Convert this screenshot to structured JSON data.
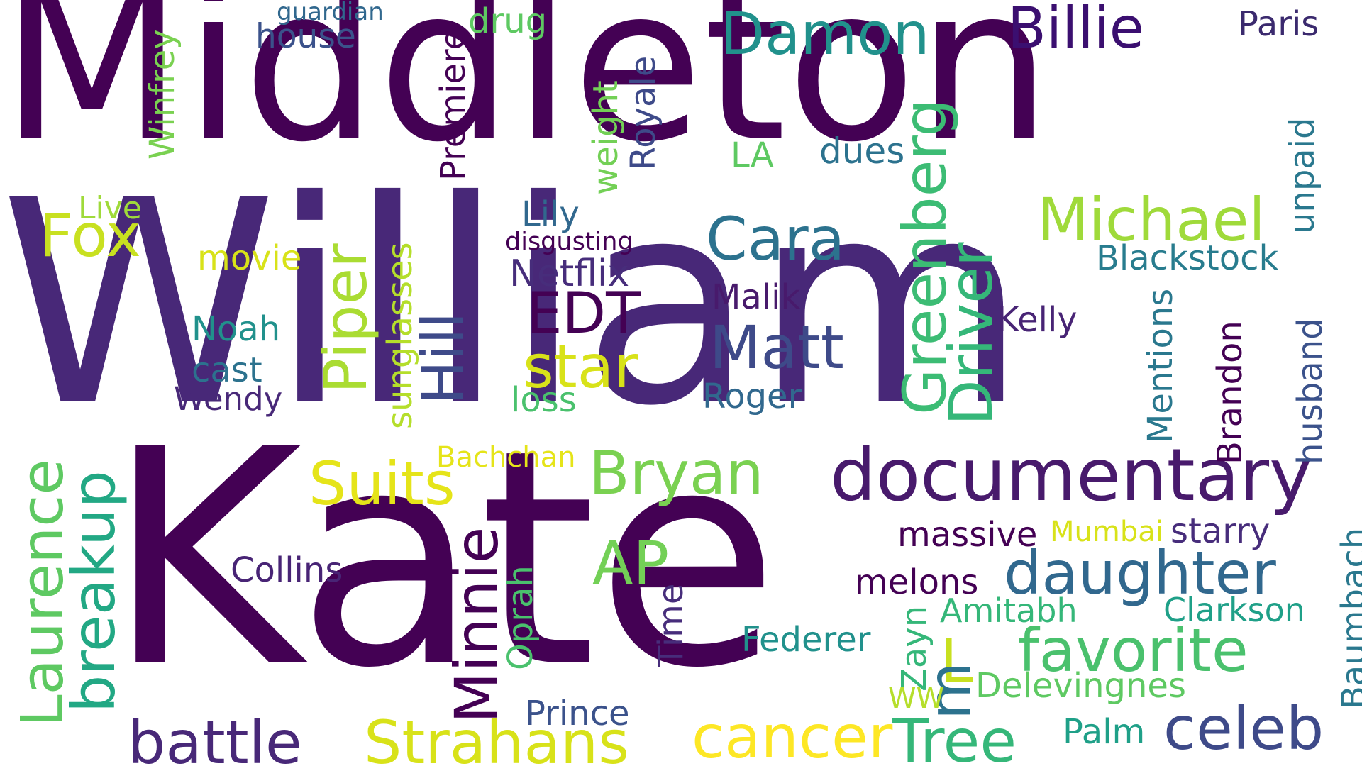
{
  "word_cloud": {
    "words": [
      {
        "id": "middleton",
        "text": "Middleton",
        "color": "#440154"
      },
      {
        "id": "william",
        "text": "William",
        "color": "#482878"
      },
      {
        "id": "kate",
        "text": "Kate",
        "color": "#440154"
      },
      {
        "id": "documentary",
        "text": "documentary",
        "color": "#481a6c"
      },
      {
        "id": "damon",
        "text": "Damon",
        "color": "#21918c"
      },
      {
        "id": "billie",
        "text": "Billie",
        "color": "#3b0f70"
      },
      {
        "id": "paris",
        "text": "Paris",
        "color": "#3b2a6e"
      },
      {
        "id": "guardian",
        "text": "guardian",
        "color": "#31688e"
      },
      {
        "id": "house",
        "text": "house",
        "color": "#3b528b"
      },
      {
        "id": "drug",
        "text": "drug",
        "color": "#5ec962"
      },
      {
        "id": "winfrey",
        "text": "Winfrey",
        "color": "#7ad151"
      },
      {
        "id": "premiere",
        "text": "Premiere",
        "color": "#440154"
      },
      {
        "id": "weight",
        "text": "weight",
        "color": "#73d056"
      },
      {
        "id": "royale",
        "text": "Royale",
        "color": "#3e4a89"
      },
      {
        "id": "la",
        "text": "LA",
        "color": "#5ec962"
      },
      {
        "id": "dues",
        "text": "dues",
        "color": "#2c728e"
      },
      {
        "id": "greenberg",
        "text": "Greenberg",
        "color": "#3cbc74"
      },
      {
        "id": "unpaid",
        "text": "unpaid",
        "color": "#2a788e"
      },
      {
        "id": "live",
        "text": "Live",
        "color": "#9fda3a"
      },
      {
        "id": "fox",
        "text": "Fox",
        "color": "#c8e020"
      },
      {
        "id": "movie",
        "text": "movie",
        "color": "#d8e219"
      },
      {
        "id": "lily",
        "text": "Lily",
        "color": "#31688e"
      },
      {
        "id": "disgusting",
        "text": "disgusting",
        "color": "#440154"
      },
      {
        "id": "cara",
        "text": "Cara",
        "color": "#2c728e"
      },
      {
        "id": "michael",
        "text": "Michael",
        "color": "#9fda3a"
      },
      {
        "id": "blackstock",
        "text": "Blackstock",
        "color": "#287c8e"
      },
      {
        "id": "netflix",
        "text": "Netflix",
        "color": "#472d7b"
      },
      {
        "id": "piper",
        "text": "Piper",
        "color": "#aadc32"
      },
      {
        "id": "sunglasses",
        "text": "sunglasses",
        "color": "#b5de2b"
      },
      {
        "id": "noah",
        "text": "Noah",
        "color": "#21918c"
      },
      {
        "id": "edt",
        "text": "EDT",
        "color": "#440154"
      },
      {
        "id": "hill",
        "text": "Hill",
        "color": "#3e4a89"
      },
      {
        "id": "malik",
        "text": "Malik",
        "color": "#481a6c"
      },
      {
        "id": "driver",
        "text": "Driver",
        "color": "#35b779"
      },
      {
        "id": "kelly",
        "text": "Kelly",
        "color": "#482475"
      },
      {
        "id": "mentions",
        "text": "Mentions",
        "color": "#2a788e"
      },
      {
        "id": "husband",
        "text": "husband",
        "color": "#3b528b"
      },
      {
        "id": "matt",
        "text": "Matt",
        "color": "#3e4a89"
      },
      {
        "id": "star",
        "text": "star",
        "color": "#d8e219"
      },
      {
        "id": "cast",
        "text": "cast",
        "color": "#2c728e"
      },
      {
        "id": "brandon",
        "text": "Brandon",
        "color": "#440154"
      },
      {
        "id": "wendy",
        "text": "Wendy",
        "color": "#482878"
      },
      {
        "id": "loss",
        "text": "loss",
        "color": "#4ac16d"
      },
      {
        "id": "roger",
        "text": "Roger",
        "color": "#31688e"
      },
      {
        "id": "bachchan",
        "text": "Bachchan",
        "color": "#e5e419"
      },
      {
        "id": "suits",
        "text": "Suits",
        "color": "#e5e419"
      },
      {
        "id": "bryan",
        "text": "Bryan",
        "color": "#7ad151"
      },
      {
        "id": "laurence",
        "text": "Laurence",
        "color": "#5ec962"
      },
      {
        "id": "breakup",
        "text": "breakup",
        "color": "#22a884"
      },
      {
        "id": "minnie",
        "text": "Minnie",
        "color": "#440154"
      },
      {
        "id": "collins",
        "text": "Collins",
        "color": "#482475"
      },
      {
        "id": "oprah",
        "text": "Oprah",
        "color": "#4ac16d"
      },
      {
        "id": "ap",
        "text": "AP",
        "color": "#73d056"
      },
      {
        "id": "massive",
        "text": "massive",
        "color": "#440154"
      },
      {
        "id": "mumbai",
        "text": "Mumbai",
        "color": "#d8e219"
      },
      {
        "id": "starry",
        "text": "starry",
        "color": "#472d7b"
      },
      {
        "id": "daughter",
        "text": "daughter",
        "color": "#31688e"
      },
      {
        "id": "baumbach",
        "text": "Baumbach",
        "color": "#2a788e"
      },
      {
        "id": "time",
        "text": "Time",
        "color": "#472d7b"
      },
      {
        "id": "melons",
        "text": "melons",
        "color": "#440154"
      },
      {
        "id": "amitabh",
        "text": "Amitabh",
        "color": "#35b779"
      },
      {
        "id": "clarkson",
        "text": "Clarkson",
        "color": "#1fa088"
      },
      {
        "id": "favorite",
        "text": "favorite",
        "color": "#4ac16d"
      },
      {
        "id": "federer",
        "text": "Federer",
        "color": "#21918c"
      },
      {
        "id": "zayn",
        "text": "Zayn",
        "color": "#35b779"
      },
      {
        "id": "l",
        "text": "L",
        "color": "#c8e020"
      },
      {
        "id": "m",
        "text": "m",
        "color": "#2c728e"
      },
      {
        "id": "ww",
        "text": "WW",
        "color": "#b5de2b"
      },
      {
        "id": "delevingnes",
        "text": "Delevingnes",
        "color": "#5ec962"
      },
      {
        "id": "prince",
        "text": "Prince",
        "color": "#3b528b"
      },
      {
        "id": "battle",
        "text": "battle",
        "color": "#482878"
      },
      {
        "id": "strahans",
        "text": "Strahans",
        "color": "#d8e219"
      },
      {
        "id": "cancer",
        "text": "cancer",
        "color": "#fde725"
      },
      {
        "id": "tree",
        "text": "Tree",
        "color": "#35b779"
      },
      {
        "id": "palm",
        "text": "Palm",
        "color": "#1fa088"
      },
      {
        "id": "celeb",
        "text": "celeb",
        "color": "#3e4a89"
      }
    ]
  }
}
